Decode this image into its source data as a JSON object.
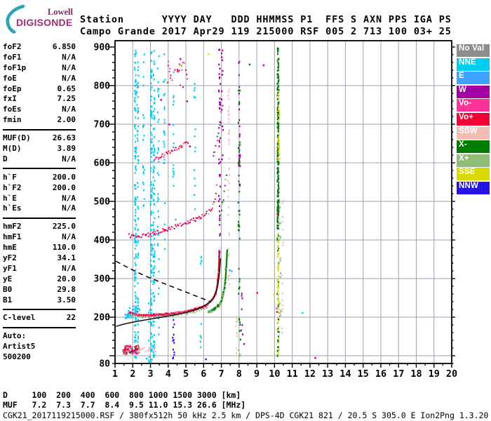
{
  "logo": {
    "line1": "Lowell",
    "line2": "DIGISONDE",
    "arc_color": "#2FA3B5",
    "line1_color": "#7B2B5E",
    "line2_color": "#9B3173"
  },
  "header": {
    "line1": "Station      YYYY DAY   DDD HHMMSS P1  FFS S AXN PPS IGA PS",
    "line2": "Campo Grande 2017 Apr29 119 215000 RSF 005 2 713 100 03+ 25"
  },
  "params": {
    "groups": [
      {
        "rows": [
          [
            "foF2",
            "6.850"
          ],
          [
            "foF1",
            "N/A"
          ],
          [
            "foF1p",
            "N/A"
          ],
          [
            "foE",
            "N/A"
          ],
          [
            "foEp",
            "0.65"
          ],
          [
            "fxI",
            "7.25"
          ],
          [
            "foEs",
            "N/A"
          ],
          [
            "fmin",
            "2.00"
          ]
        ],
        "divider": true
      },
      {
        "rows": [
          [
            "MUF(D)",
            "26.63"
          ],
          [
            "M(D)",
            "3.89"
          ],
          [
            "D",
            "N/A"
          ]
        ],
        "divider": true
      },
      {
        "rows": [
          [
            "h`F",
            "200.0"
          ],
          [
            "h`F2",
            "200.0"
          ],
          [
            "h`E",
            "N/A"
          ],
          [
            "h`Es",
            "N/A"
          ]
        ],
        "divider": true
      },
      {
        "rows": [
          [
            "hmF2",
            "225.0"
          ],
          [
            "hmF1",
            "N/A"
          ],
          [
            "hmE",
            "110.0"
          ],
          [
            "yF2",
            "34.1"
          ],
          [
            "yF1",
            "N/A"
          ],
          [
            "yE",
            "20.0"
          ],
          [
            "B0",
            "29.8"
          ],
          [
            "B1",
            "3.50"
          ]
        ],
        "divider": true
      },
      {
        "rows": [
          [
            "C-level",
            "22"
          ]
        ],
        "divider": true
      },
      {
        "rows": [
          [
            "Auto:",
            ""
          ],
          [
            "Artist5",
            ""
          ],
          [
            "500200",
            ""
          ]
        ],
        "divider": false
      }
    ]
  },
  "colors": {
    "noval": "#8C8C8C",
    "nne": "#00CCEE",
    "e": "#3FA2FF",
    "w": "#A300A3",
    "vo-": "#FF3399",
    "vo+": "#F20233",
    "ssw": "#F2BDB4",
    "x-": "#007C00",
    "x+": "#8FBC77",
    "sse": "#D9D900",
    "nnw": "#2613E6"
  },
  "legend": {
    "items": [
      [
        "No Val",
        "noval"
      ],
      [
        "NNE",
        "nne"
      ],
      [
        "E",
        "e"
      ],
      [
        "W",
        "w"
      ],
      [
        "Vo-",
        "vo-"
      ],
      [
        "Vo+",
        "vo+"
      ],
      [
        "SSW",
        "ssw"
      ],
      [
        "X-",
        "x-"
      ],
      [
        "X+",
        "x+"
      ],
      [
        "SSE",
        "sse"
      ],
      [
        "NNW",
        "nnw"
      ]
    ]
  },
  "footer": {
    "file_row": "CGK21_2017119215000.RSF / 380fx512h 50 kHz 2.5 km / DPS-4D CGK21 821 / 20.5 S 305.0 E Ion2Png 1.3.20"
  },
  "chart_data": {
    "type": "scatter",
    "title": "Daytime ionogram, Campo Grande, 2017 Apr29 119 215000",
    "x_axis": {
      "min": 1,
      "max": 20,
      "tick_step": 1,
      "unit": "MHz"
    },
    "y_axis": {
      "min": 80,
      "max": 900,
      "grid_step": 100,
      "minor_step": 20,
      "labels": [
        900,
        800,
        700,
        600,
        500,
        400,
        300,
        200,
        80
      ],
      "unit": "km"
    },
    "grid": true,
    "legend_position": "right",
    "muf_table": {
      "label_d": "D",
      "distances_km": [
        100,
        200,
        400,
        600,
        800,
        1000,
        1500,
        3000
      ],
      "unit_d": "[km]",
      "label_muf": "MUF",
      "muf_mhz": [
        7.2,
        7.3,
        7.7,
        8.4,
        9.5,
        11.0,
        15.3,
        26.6
      ],
      "unit_muf": "[MHz]"
    },
    "curves": {
      "dashed_profile": [
        [
          1.05,
          345
        ],
        [
          1.5,
          334
        ],
        [
          2.0,
          322
        ],
        [
          2.5,
          311
        ],
        [
          3.0,
          301
        ],
        [
          3.5,
          292
        ],
        [
          4.0,
          283
        ],
        [
          4.5,
          274
        ],
        [
          5.0,
          265
        ],
        [
          5.5,
          256
        ],
        [
          6.0,
          247
        ],
        [
          6.38,
          240
        ]
      ],
      "solid_profile": [
        [
          1.05,
          176
        ],
        [
          1.5,
          182
        ],
        [
          2.0,
          187
        ],
        [
          2.5,
          191
        ],
        [
          3.0,
          195
        ],
        [
          3.5,
          199
        ],
        [
          4.0,
          203
        ],
        [
          4.5,
          207
        ],
        [
          5.0,
          212
        ],
        [
          5.4,
          217
        ],
        [
          5.8,
          224
        ],
        [
          6.1,
          231
        ],
        [
          6.35,
          239
        ],
        [
          6.55,
          250
        ],
        [
          6.7,
          264
        ],
        [
          6.8,
          282
        ],
        [
          6.87,
          305
        ],
        [
          6.92,
          330
        ],
        [
          6.95,
          352
        ]
      ]
    },
    "traces": [
      {
        "name": "F2-ordinary",
        "stroke": "vo+",
        "stroke_w": 2.4,
        "step": 0.045,
        "jitter": 2.4,
        "size": 2.2,
        "layers": 2,
        "mix": {
          "vo+": 0.5,
          "vo-": 0.35,
          "x+": 0.15
        },
        "pts": [
          [
            1.85,
            213
          ],
          [
            2.0,
            208
          ],
          [
            2.4,
            205
          ],
          [
            3.0,
            205
          ],
          [
            3.5,
            206
          ],
          [
            4.0,
            208
          ],
          [
            4.5,
            211
          ],
          [
            5.0,
            214
          ],
          [
            5.4,
            218
          ],
          [
            5.8,
            224
          ],
          [
            6.1,
            230
          ],
          [
            6.35,
            238
          ],
          [
            6.55,
            249
          ],
          [
            6.7,
            264
          ],
          [
            6.78,
            285
          ],
          [
            6.84,
            312
          ],
          [
            6.87,
            340
          ],
          [
            6.89,
            371
          ]
        ]
      },
      {
        "name": "F2-extraordinary",
        "stroke": "x-",
        "stroke_w": 2.2,
        "step": 0.03,
        "jitter": 2.4,
        "size": 2.2,
        "layers": 2,
        "mix": {
          "x-": 0.45,
          "x+": 0.55
        },
        "pts": [
          [
            6.28,
            213
          ],
          [
            6.5,
            218
          ],
          [
            6.7,
            224
          ],
          [
            6.88,
            232
          ],
          [
            7.0,
            243
          ],
          [
            7.1,
            258
          ],
          [
            7.18,
            278
          ],
          [
            7.24,
            303
          ],
          [
            7.28,
            330
          ],
          [
            7.31,
            355
          ],
          [
            7.33,
            374
          ]
        ]
      },
      {
        "name": "F2-x-lowband",
        "step": 0.13,
        "jitter": 2,
        "size": 2,
        "layers": 1,
        "mix": {
          "x+": 1
        },
        "pts": [
          [
            2.0,
            201
          ],
          [
            3.0,
            200
          ],
          [
            4.0,
            203
          ],
          [
            5.0,
            208
          ],
          [
            5.8,
            217
          ],
          [
            6.2,
            226
          ]
        ]
      },
      {
        "name": "second-hop",
        "step": 0.055,
        "jitter": 5,
        "size": 2,
        "layers": 1,
        "mix": {
          "vo+": 0.45,
          "vo-": 0.3,
          "x+": 0.15,
          "w": 0.1
        },
        "pts": [
          [
            1.8,
            412
          ],
          [
            2.2,
            408
          ],
          [
            2.6,
            410
          ],
          [
            3.0,
            415
          ],
          [
            3.5,
            421
          ],
          [
            4.0,
            428
          ],
          [
            4.5,
            436
          ],
          [
            5.0,
            444
          ],
          [
            5.5,
            453
          ],
          [
            5.9,
            461
          ],
          [
            6.2,
            469
          ],
          [
            6.45,
            481
          ],
          [
            6.6,
            497
          ],
          [
            6.7,
            518
          ],
          [
            6.78,
            548
          ]
        ]
      },
      {
        "name": "second-hop-x",
        "step": 0.04,
        "jitter": 6,
        "size": 2,
        "layers": 1,
        "mix": {
          "x-": 0.5,
          "x+": 0.3,
          "w": 0.2
        },
        "pts": [
          [
            6.95,
            470
          ],
          [
            7.1,
            505
          ],
          [
            7.2,
            545
          ],
          [
            7.3,
            585
          ]
        ]
      },
      {
        "name": "third-hop",
        "step": 0.06,
        "jitter": 5,
        "size": 2,
        "layers": 1,
        "mix": {
          "vo+": 0.55,
          "vo-": 0.45
        },
        "pts": [
          [
            3.2,
            608
          ],
          [
            3.6,
            617
          ],
          [
            4.0,
            626
          ],
          [
            4.4,
            635
          ],
          [
            4.8,
            646
          ],
          [
            5.15,
            656
          ]
        ]
      },
      {
        "name": "third-hop-rise",
        "step": 0.05,
        "jitter": 7,
        "size": 2,
        "layers": 1,
        "mix": {
          "vo-": 0.4,
          "x-": 0.3,
          "w": 0.3
        },
        "pts": [
          [
            6.55,
            612
          ],
          [
            6.75,
            652
          ],
          [
            6.92,
            700
          ],
          [
            7.05,
            742
          ]
        ]
      }
    ],
    "clusters": [
      {
        "name": "sporadic-E",
        "x": [
          1.45,
          2.35
        ],
        "y": [
          104,
          126
        ],
        "n": 85,
        "size": 2.4,
        "mix": {
          "vo-": 0.35,
          "vo+": 0.3,
          "x+": 0.2,
          "x-": 0.1,
          "w": 0.05
        }
      },
      {
        "name": "sporadic-E-salmon",
        "x": [
          2.3,
          3.35
        ],
        "y": [
          109,
          123
        ],
        "n": 22,
        "size": 2.2,
        "mix": {
          "ssw": 1
        }
      },
      {
        "name": "trace-start-scatter",
        "x": [
          1.6,
          2.45
        ],
        "y": [
          197,
          229
        ],
        "n": 34,
        "size": 2.4,
        "mix": {
          "nne": 0.65,
          "e": 0.35
        }
      },
      {
        "name": "fourth-hop",
        "x": [
          3.9,
          5.1
        ],
        "y": [
          795,
          865
        ],
        "n": 26,
        "size": 2,
        "mix": {
          "vo-": 0.4,
          "w": 0.25,
          "vo+": 0.2,
          "x+": 0.15
        }
      }
    ],
    "rfi_columns": [
      {
        "f": 2.15,
        "c": "nne",
        "a": [
          85,
          895
        ],
        "n": 135
      },
      {
        "f": 2.28,
        "c": "nne",
        "a": [
          120,
          880
        ],
        "n": 55
      },
      {
        "f": 2.62,
        "c": "nne",
        "a": [
          480,
          900
        ],
        "n": 22
      },
      {
        "f": 2.92,
        "c": "nne",
        "a": [
          85,
          240
        ],
        "n": 10
      },
      {
        "f": 3.05,
        "c": "nne",
        "a": [
          85,
          895
        ],
        "n": 120
      },
      {
        "f": 3.2,
        "c": "nne",
        "a": [
          85,
          895
        ],
        "n": 105
      },
      {
        "f": 3.44,
        "c": "nne",
        "a": [
          100,
          880
        ],
        "n": 40
      },
      {
        "f": 3.78,
        "c": "nne",
        "a": [
          300,
          890
        ],
        "n": 26
      },
      {
        "f": 4.3,
        "c": "nne",
        "a": [
          500,
          880
        ],
        "n": 16
      },
      {
        "f": 4.3,
        "c": "nnw",
        "a": [
          88,
          200
        ],
        "n": 13
      },
      {
        "f": 5.5,
        "c": "nne",
        "a": [
          420,
          830
        ],
        "n": 14
      },
      {
        "f": 5.85,
        "c": "nne",
        "a": [
          90,
          520
        ],
        "n": 12
      },
      {
        "f": 6.9,
        "c": "w",
        "a": [
          380,
          900
        ],
        "n": 42
      },
      {
        "f": 7.05,
        "c": "w",
        "a": [
          600,
          900
        ],
        "n": 13
      },
      {
        "f": 7.42,
        "c": "ssw",
        "a": [
          250,
          800
        ],
        "n": 38
      },
      {
        "f": 7.85,
        "c": "ssw",
        "a": [
          95,
          210
        ],
        "n": 10
      },
      {
        "f": 8.0,
        "c": "x-",
        "a": [
          260,
          790
        ],
        "n": 42
      },
      {
        "f": 8.02,
        "c": "w",
        "a": [
          520,
          900
        ],
        "n": 22
      },
      {
        "f": 8.05,
        "c": "x-",
        "a": [
          140,
          210
        ],
        "n": 6
      },
      {
        "f": 8.05,
        "c": "x+",
        "a": [
          88,
          112
        ],
        "n": 5
      },
      {
        "f": 8.16,
        "c": "w",
        "a": [
          100,
          300
        ],
        "n": 7
      },
      {
        "f": 10.2,
        "c": "x-",
        "a": [
          430,
          900
        ],
        "n": 200
      },
      {
        "f": 10.2,
        "c": "x-",
        "a": [
          85,
          430
        ],
        "n": 30
      },
      {
        "f": 10.2,
        "c": "sse",
        "a": [
          95,
          430
        ],
        "n": 45
      },
      {
        "f": 10.25,
        "c": "sse",
        "a": [
          590,
          790
        ],
        "n": 26
      },
      {
        "f": 10.45,
        "c": "ssw",
        "a": [
          160,
          560
        ],
        "n": 16
      },
      {
        "f": 10.3,
        "c": "x+",
        "a": [
          200,
          500
        ],
        "n": 18
      }
    ],
    "dots": [
      [
        9.05,
        262,
        "vo+"
      ],
      [
        10.18,
        467,
        "vo+"
      ],
      [
        10.15,
        222,
        "vo-"
      ],
      [
        10.17,
        213,
        "vo+"
      ],
      [
        9.95,
        260,
        "sse"
      ],
      [
        6.3,
        882,
        "sse"
      ],
      [
        5.2,
        642,
        "w"
      ],
      [
        4.45,
        452,
        "e"
      ],
      [
        7.5,
        322,
        "e"
      ],
      [
        7.56,
        318,
        "nne"
      ],
      [
        12.3,
        95,
        "w"
      ],
      [
        6.15,
        90,
        "nnw"
      ],
      [
        2.8,
        92,
        "nne"
      ],
      [
        8.6,
        855,
        "x-"
      ],
      [
        9.4,
        852,
        "w"
      ],
      [
        5.05,
        760,
        "w"
      ],
      [
        4.1,
        700,
        "w"
      ],
      [
        3.6,
        762,
        "w"
      ],
      [
        8.3,
        130,
        "w"
      ],
      [
        7.95,
        115,
        "x+"
      ],
      [
        11.6,
        210,
        "nne"
      ],
      [
        4.7,
        868,
        "w"
      ],
      [
        4.35,
        840,
        "vo-"
      ],
      [
        6.86,
        356,
        "w"
      ],
      [
        6.88,
        368,
        "w"
      ]
    ]
  }
}
